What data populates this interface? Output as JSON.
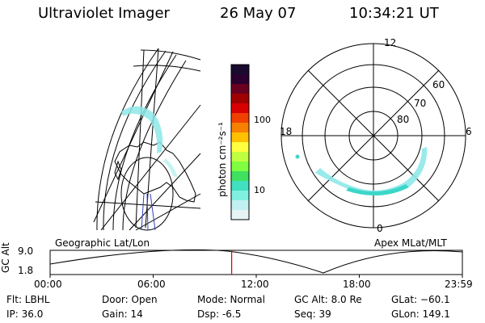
{
  "header": {
    "instrument": "Ultraviolet Imager",
    "date": "26 May 07",
    "time": "10:34:21 UT"
  },
  "colorbar": {
    "unit": "photon cm⁻²s⁻¹",
    "tick_labels": [
      "100",
      "10"
    ],
    "colors": [
      "#1a0a2e",
      "#2b0030",
      "#6a0020",
      "#a00000",
      "#d80000",
      "#f04000",
      "#f88000",
      "#ffc000",
      "#ffff40",
      "#c0ff40",
      "#80ff40",
      "#40e060",
      "#40e0c0",
      "#80f0e0",
      "#c0f0f0",
      "#e6f4f4"
    ]
  },
  "polar_plot": {
    "mlat_labels": [
      "60",
      "70",
      "80"
    ],
    "mlt_labels": {
      "top": "12",
      "left": "18",
      "right": "6",
      "bottom": "0"
    }
  },
  "footer_labels": {
    "left": "Geographic Lat/Lon",
    "right": "Apex MLat/MLT"
  },
  "altitude_plot": {
    "ylabel": "GC Alt",
    "y_ticks": [
      "9.0",
      "1.8"
    ],
    "x_ticks": [
      "00:00",
      "06:00",
      "12:00",
      "18:00",
      "23:59"
    ],
    "current_time_hours": 10.57
  },
  "info": {
    "filter": "Flt: LBHL",
    "ip": "IP: 36.0",
    "door": "Door: Open",
    "gain": "Gain: 14",
    "mode": "Mode: Normal",
    "dsp": "Dsp:  -6.5",
    "gc_alt": "GC Alt: 8.0 Re",
    "seq": "Seq: 39",
    "glat": "GLat: −60.1",
    "glon": "GLon: 149.1"
  }
}
